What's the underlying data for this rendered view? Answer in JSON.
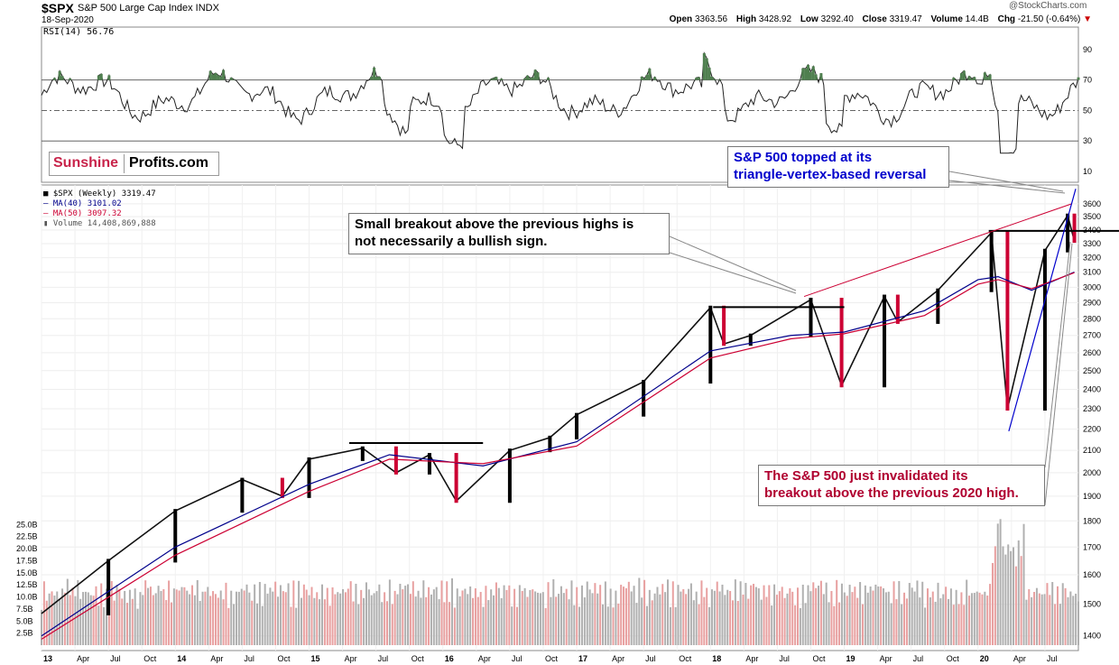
{
  "header": {
    "symbol": "$SPX",
    "name": "S&P 500 Large Cap Index INDX",
    "date": "18-Sep-2020",
    "watermark": "@StockCharts.com",
    "open_label": "Open",
    "open": "3363.56",
    "high_label": "High",
    "high": "3428.92",
    "low_label": "Low",
    "low": "3292.40",
    "close_label": "Close",
    "close": "3319.47",
    "volume_label": "Volume",
    "volume": "14.4B",
    "chg_label": "Chg",
    "chg": "-21.50 (-0.64%)"
  },
  "rsi_label": "RSI(14) 56.76",
  "legend": {
    "price": "$SPX (Weekly) 3319.47",
    "ma40": "MA(40) 3101.02",
    "ma50": "MA(50) 3097.32",
    "volume": "Volume 14,408,869,888"
  },
  "logo": {
    "part1": "Sunshine",
    "part2": "Profits.com"
  },
  "annotations": {
    "topped": [
      "S&P 500 topped at its",
      "triangle-vertex-based reversal"
    ],
    "breakout": [
      "Small breakout above the previous highs is",
      "not necessarily a bullish sign."
    ],
    "invalidated": [
      "The S&P 500 just invalidated its",
      "breakout above the previous 2020 high."
    ]
  },
  "colors": {
    "price_up": "#000000",
    "price_down": "#cc0033",
    "ma40": "#00008b",
    "ma50": "#cc0033",
    "rsi_fill": "#4f7f4f",
    "vol_up": "#b0b0b0",
    "vol_down": "#e8a0a0",
    "annot_blue": "#0000cc",
    "annot_red": "#b00030"
  },
  "chart_data": {
    "type": "line",
    "rsi": {
      "ticks": [
        10,
        30,
        50,
        70,
        90
      ],
      "ylim": [
        10,
        100
      ]
    },
    "price": {
      "ticks": [
        1400,
        1500,
        1600,
        1700,
        1800,
        1900,
        2000,
        2100,
        2200,
        2300,
        2400,
        2500,
        2600,
        2700,
        2800,
        2900,
        3000,
        3100,
        3200,
        3300,
        3400,
        3500,
        3600
      ],
      "scale": "log",
      "series": [
        {
          "name": "$SPX (Weekly)",
          "x": [
            2013.0,
            2013.5,
            2014.0,
            2014.5,
            2014.8,
            2015.0,
            2015.4,
            2015.65,
            2015.9,
            2016.1,
            2016.5,
            2016.8,
            2017.0,
            2017.5,
            2018.0,
            2018.1,
            2018.3,
            2018.75,
            2018.98,
            2019.3,
            2019.4,
            2019.7,
            2020.1,
            2020.22,
            2020.5,
            2020.67,
            2020.72
          ],
          "y": [
            1470,
            1650,
            1840,
            1970,
            1900,
            2060,
            2110,
            2000,
            2080,
            1880,
            2100,
            2160,
            2270,
            2440,
            2870,
            2650,
            2700,
            2920,
            2420,
            2940,
            2780,
            2980,
            3380,
            2300,
            3250,
            3510,
            3319
          ]
        },
        {
          "name": "MA(40)",
          "x": [
            2013.0,
            2014.0,
            2015.0,
            2015.6,
            2016.3,
            2017.0,
            2018.0,
            2018.6,
            2019.0,
            2019.6,
            2020.0,
            2020.15,
            2020.4,
            2020.72
          ],
          "y": [
            1400,
            1700,
            1950,
            2080,
            2030,
            2140,
            2610,
            2700,
            2720,
            2850,
            3050,
            3070,
            2980,
            3101
          ]
        },
        {
          "name": "MA(50)",
          "x": [
            2013.0,
            2014.0,
            2015.0,
            2015.6,
            2016.3,
            2017.0,
            2018.0,
            2018.6,
            2019.0,
            2019.6,
            2020.0,
            2020.15,
            2020.4,
            2020.72
          ],
          "y": [
            1390,
            1670,
            1920,
            2060,
            2040,
            2120,
            2570,
            2680,
            2710,
            2820,
            3020,
            3050,
            2990,
            3097
          ]
        }
      ]
    },
    "volume": {
      "ticks": [
        "2.5B",
        "5.0B",
        "7.5B",
        "10.0B",
        "12.5B",
        "15.0B",
        "17.5B",
        "20.0B",
        "22.5B",
        "25.0B"
      ],
      "ylim": [
        0,
        27.5
      ]
    },
    "x_labels": [
      "13",
      "Apr",
      "Jul",
      "Oct",
      "14",
      "Apr",
      "Jul",
      "Oct",
      "15",
      "Apr",
      "Jul",
      "Oct",
      "16",
      "Apr",
      "Jul",
      "Oct",
      "17",
      "Apr",
      "Jul",
      "Oct",
      "18",
      "Apr",
      "Jul",
      "Oct",
      "19",
      "Apr",
      "Jul",
      "Oct",
      "20",
      "Apr",
      "Jul"
    ]
  }
}
